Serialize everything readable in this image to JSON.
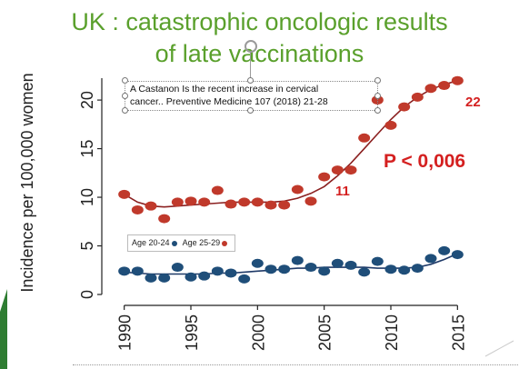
{
  "title": {
    "line1": "UK : catastrophic oncologic results",
    "line2": "of late vaccinations"
  },
  "textbox": {
    "line1": "A Castanon Is the recent increase in cervical",
    "line2": "cancer.. Preventive Medicine 107 (2018) 21-28"
  },
  "annotations": {
    "p_value": "P < 0,006",
    "label_22": "22",
    "label_11": "11"
  },
  "legend": {
    "age_20_24": "Age 20-24",
    "age_25_29": "Age 25-29"
  },
  "colors": {
    "title": "#5aa02c",
    "series_20_24": "#1f4e79",
    "series_25_29": "#c0392b",
    "fit_20_24": "#1f3a68",
    "fit_25_29": "#8b2020",
    "annotation_red": "#d42020",
    "accent_green": "#2e7d32"
  },
  "chart_data": {
    "type": "scatter",
    "title": "",
    "xlabel": "",
    "ylabel": "Incidence per 100,000 women",
    "xlim": [
      1989,
      2016
    ],
    "ylim": [
      0,
      23
    ],
    "x_ticks": [
      1990,
      1995,
      2000,
      2005,
      2010,
      2015
    ],
    "y_ticks": [
      0,
      5,
      10,
      15,
      20
    ],
    "x": [
      1990,
      1991,
      1992,
      1993,
      1994,
      1995,
      1996,
      1997,
      1998,
      1999,
      2000,
      2001,
      2002,
      2003,
      2004,
      2005,
      2006,
      2007,
      2008,
      2009,
      2010,
      2011,
      2012,
      2013,
      2014,
      2015
    ],
    "series": [
      {
        "name": "Age 20-24",
        "values": [
          2.4,
          2.4,
          1.7,
          1.7,
          2.8,
          1.8,
          1.9,
          2.4,
          2.2,
          1.6,
          3.2,
          2.6,
          2.6,
          3.5,
          2.8,
          2.4,
          3.2,
          3.0,
          2.3,
          3.4,
          2.6,
          2.5,
          2.7,
          3.7,
          4.5,
          4.1
        ],
        "fit": [
          2.3,
          2.2,
          2.1,
          2.1,
          2.1,
          2.1,
          2.1,
          2.2,
          2.2,
          2.3,
          2.4,
          2.5,
          2.6,
          2.7,
          2.7,
          2.8,
          2.8,
          2.8,
          2.8,
          2.7,
          2.7,
          2.7,
          2.8,
          3.1,
          3.6,
          4.2
        ]
      },
      {
        "name": "Age 25-29",
        "values": [
          10.3,
          8.7,
          9.1,
          7.8,
          9.5,
          9.6,
          9.5,
          10.7,
          9.3,
          9.5,
          9.5,
          9.2,
          9.2,
          10.8,
          9.6,
          12.1,
          12.8,
          12.8,
          16.1,
          20.0,
          17.4,
          19.3,
          20.3,
          21.2,
          21.5,
          22.0
        ],
        "fit": [
          10.3,
          9.5,
          9.1,
          9.0,
          9.1,
          9.2,
          9.3,
          9.4,
          9.5,
          9.5,
          9.5,
          9.5,
          9.6,
          9.9,
          10.4,
          11.1,
          12.2,
          13.5,
          15.0,
          16.5,
          18.0,
          19.3,
          20.3,
          21.1,
          21.6,
          22.0
        ]
      }
    ]
  }
}
